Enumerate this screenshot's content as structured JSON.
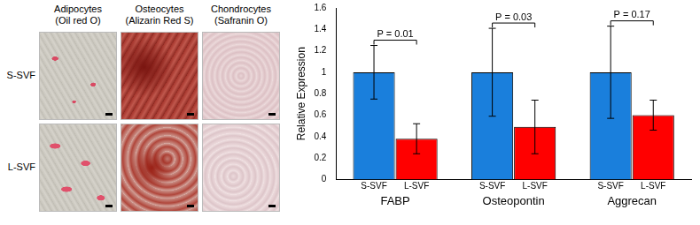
{
  "chart_data": {
    "type": "bar",
    "categories": [
      "FABP",
      "Osteopontin",
      "Aggrecan"
    ],
    "series": [
      {
        "name": "S-SVF",
        "color": "#1a7fdc",
        "values": [
          1,
          1,
          1
        ],
        "errors": [
          0.25,
          0.41,
          0.43
        ]
      },
      {
        "name": "L-SVF",
        "color": "#ff0000",
        "values": [
          0.38,
          0.49,
          0.6
        ],
        "errors": [
          0.14,
          0.25,
          0.14
        ]
      }
    ],
    "y_label": "Relative Expression",
    "ylim": [
      0,
      1.6
    ],
    "yticks": [
      0,
      0.2,
      0.4,
      0.6,
      0.8,
      1,
      1.2,
      1.4,
      1.6
    ],
    "grid": false,
    "annotations": [
      {
        "text": "P = 0.01",
        "category": "FABP"
      },
      {
        "text": "P = 0.03",
        "category": "Osteopontin"
      },
      {
        "text": "P = 0.17",
        "category": "Aggrecan"
      }
    ]
  },
  "image_panel": {
    "columns": [
      {
        "title": "Adipocytes",
        "stain": "(Oil red O)"
      },
      {
        "title": "Osteocytes",
        "stain": "(Alizarin Red S)"
      },
      {
        "title": "Chondrocytes",
        "stain": "(Safranin O)"
      }
    ],
    "rows": [
      "S-SVF",
      "L-SVF"
    ]
  }
}
